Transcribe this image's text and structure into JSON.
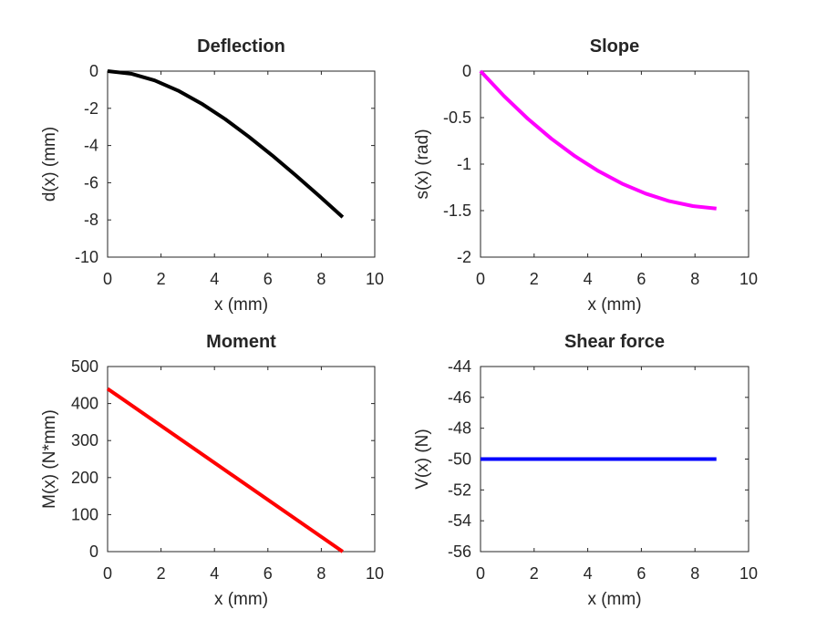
{
  "chart_data": [
    {
      "type": "line",
      "title": "Deflection",
      "xlabel": "x (mm)",
      "ylabel": "d(x) (mm)",
      "xlim": [
        0,
        10
      ],
      "ylim": [
        -10,
        0
      ],
      "xticks": [
        "0",
        "2",
        "4",
        "6",
        "8",
        "10"
      ],
      "yticks": [
        "0",
        "-2",
        "-4",
        "-6",
        "-8",
        "-10"
      ],
      "grid": false,
      "series": [
        {
          "color": "#000000",
          "x": [
            0,
            0.88,
            1.76,
            2.64,
            3.52,
            4.4,
            5.28,
            6.16,
            7.04,
            7.92,
            8.8
          ],
          "y": [
            0,
            -0.14,
            -0.5,
            -1.05,
            -1.75,
            -2.58,
            -3.52,
            -4.53,
            -5.6,
            -6.71,
            -7.85
          ]
        }
      ]
    },
    {
      "type": "line",
      "title": "Slope",
      "xlabel": "x (mm)",
      "ylabel": "s(x) (rad)",
      "xlim": [
        0,
        10
      ],
      "ylim": [
        -2,
        0
      ],
      "xticks": [
        "0",
        "2",
        "4",
        "6",
        "8",
        "10"
      ],
      "yticks": [
        "0",
        "-0.5",
        "-1",
        "-1.5",
        "-2"
      ],
      "grid": false,
      "series": [
        {
          "color": "#ff00ff",
          "x": [
            0,
            0.88,
            1.76,
            2.64,
            3.52,
            4.4,
            5.28,
            6.16,
            7.04,
            7.92,
            8.8
          ],
          "y": [
            0,
            -0.269,
            -0.511,
            -0.726,
            -0.914,
            -1.075,
            -1.21,
            -1.317,
            -1.398,
            -1.451,
            -1.478
          ]
        }
      ]
    },
    {
      "type": "line",
      "title": "Moment",
      "xlabel": "x (mm)",
      "ylabel": "M(x) (N*mm)",
      "xlim": [
        0,
        10
      ],
      "ylim": [
        0,
        500
      ],
      "xticks": [
        "0",
        "2",
        "4",
        "6",
        "8",
        "10"
      ],
      "yticks": [
        "0",
        "100",
        "200",
        "300",
        "400",
        "500"
      ],
      "grid": false,
      "series": [
        {
          "color": "#ff0000",
          "x": [
            0,
            8.8
          ],
          "y": [
            440,
            0
          ]
        }
      ]
    },
    {
      "type": "line",
      "title": "Shear force",
      "xlabel": "x (mm)",
      "ylabel": "V(x) (N)",
      "xlim": [
        0,
        10
      ],
      "ylim": [
        -56,
        -44
      ],
      "xticks": [
        "0",
        "2",
        "4",
        "6",
        "8",
        "10"
      ],
      "yticks": [
        "-44",
        "-46",
        "-48",
        "-50",
        "-52",
        "-54",
        "-56"
      ],
      "grid": false,
      "series": [
        {
          "color": "#0000ff",
          "x": [
            0,
            8.8
          ],
          "y": [
            -50,
            -50
          ]
        }
      ]
    }
  ]
}
